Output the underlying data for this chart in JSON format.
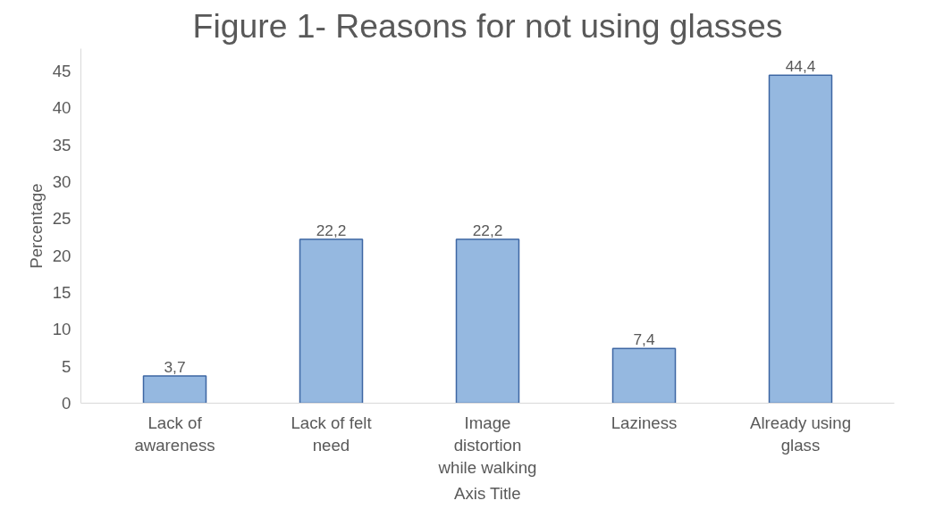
{
  "chart_data": {
    "type": "bar",
    "title": "Figure 1- Reasons for not using glasses",
    "xlabel": "Axis Title",
    "ylabel": "Percentage",
    "categories": [
      "Lack of awareness",
      "Lack of felt need",
      "Image distortion while walking",
      "Laziness",
      "Already using glass"
    ],
    "values": [
      3.7,
      22.2,
      22.2,
      7.4,
      44.4
    ],
    "value_labels": [
      "3,7",
      "22,2",
      "22,2",
      "7,4",
      "44,4"
    ],
    "color": "#95b8e0",
    "ylim": [
      0,
      48
    ],
    "yticks": [
      0,
      5,
      10,
      15,
      20,
      25,
      30,
      35,
      40,
      45
    ],
    "grid": false
  }
}
